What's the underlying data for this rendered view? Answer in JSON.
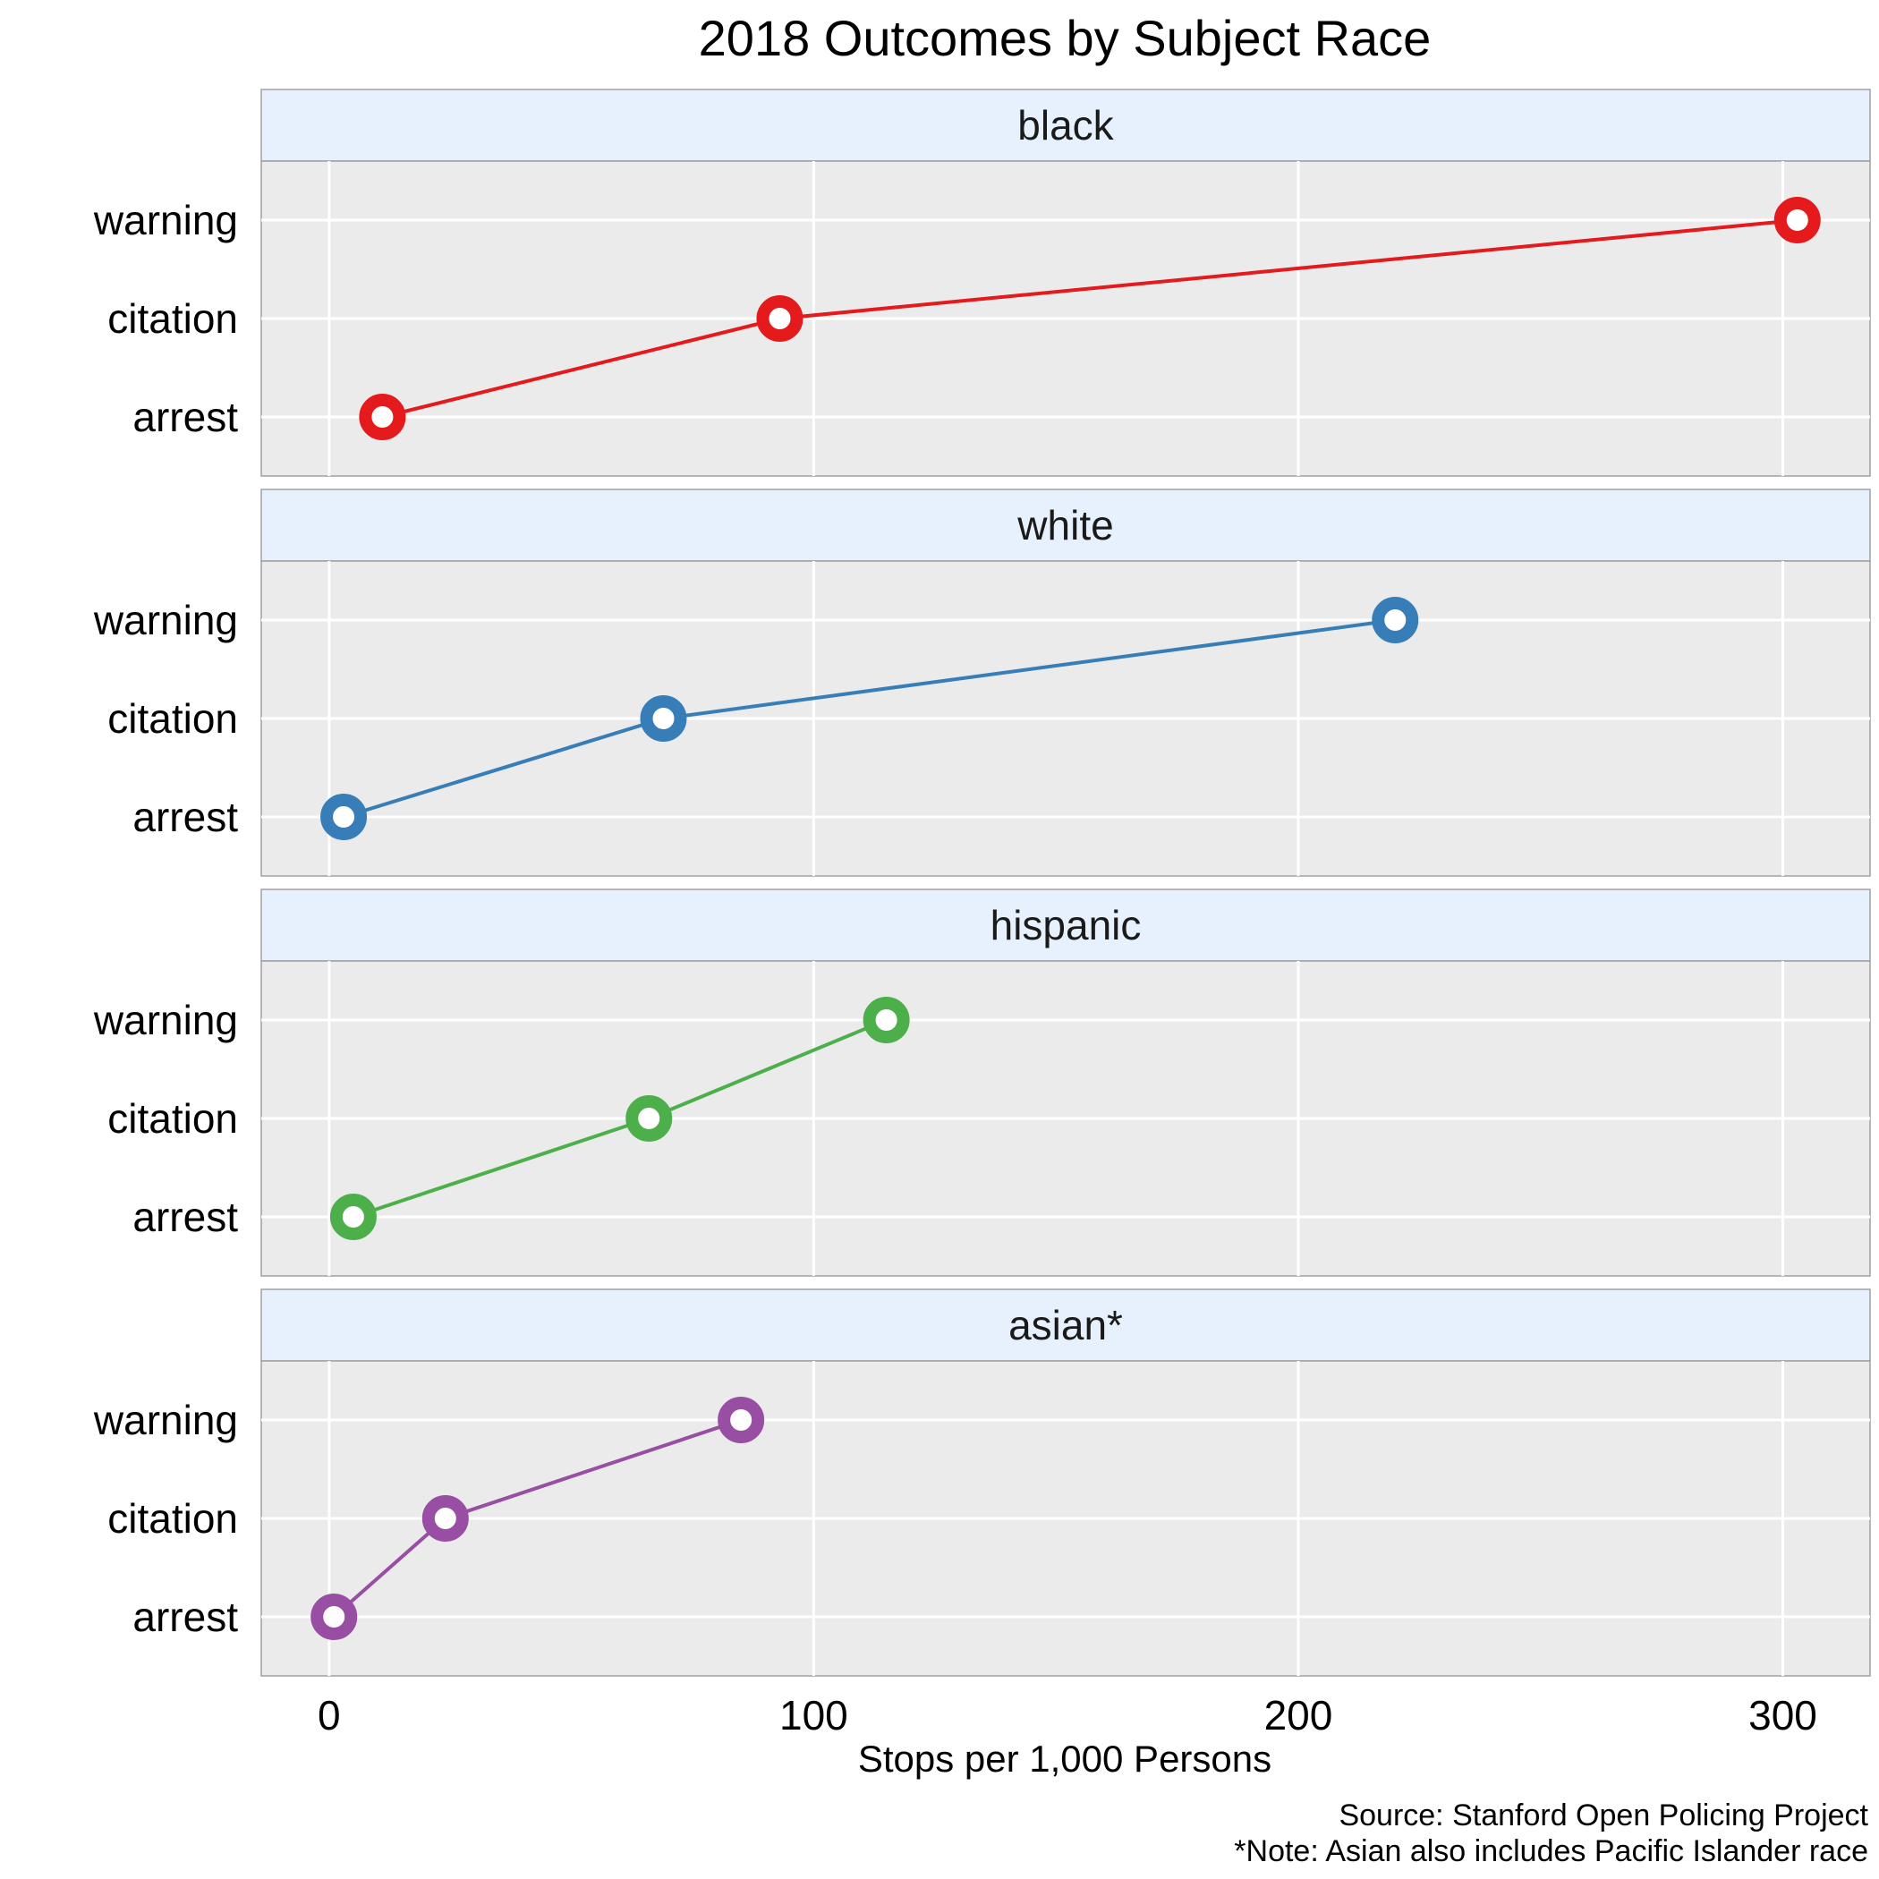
{
  "chart_data": {
    "type": "line",
    "title": "2018 Outcomes by Subject Race",
    "xlabel": "Stops per 1,000 Persons",
    "ylabel": "",
    "categories": [
      "arrest",
      "citation",
      "warning"
    ],
    "xlim": [
      -14,
      318
    ],
    "xticks": [
      0,
      100,
      200,
      300
    ],
    "grid": true,
    "legend": "none",
    "panels": [
      {
        "name": "black",
        "color": "#E41A1C",
        "values": [
          11,
          93,
          303
        ]
      },
      {
        "name": "white",
        "color": "#377EB8",
        "values": [
          3,
          69,
          220
        ]
      },
      {
        "name": "hispanic",
        "color": "#4DAF4A",
        "values": [
          5,
          66,
          115
        ]
      },
      {
        "name": "asian*",
        "color": "#984EA3",
        "values": [
          1,
          24,
          85
        ]
      }
    ],
    "caption": [
      "Source: Stanford Open Policing Project",
      "*Note: Asian also includes Pacific Islander race"
    ]
  },
  "style": {
    "panel_bg": "#EBEBEB",
    "strip_bg": "#E6F1FD",
    "grid_color": "#FFFFFF",
    "border_color": "#A0A0A0"
  }
}
